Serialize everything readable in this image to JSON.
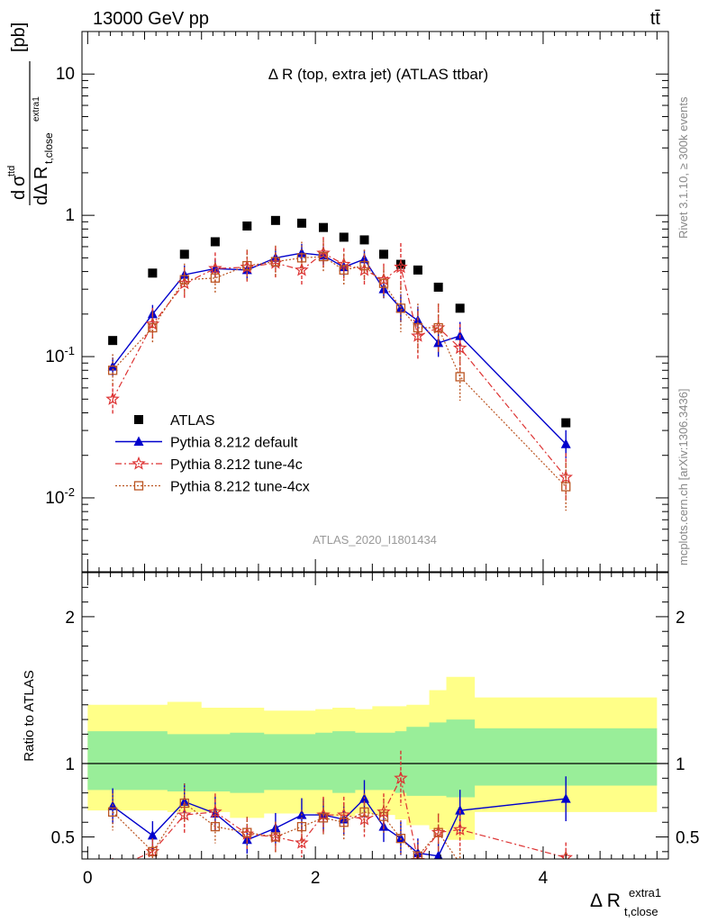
{
  "header": {
    "beam_label": "13000 GeV pp",
    "process_label": "tt̄"
  },
  "side_labels": {
    "rivet": "Rivet 3.1.10, ≥ 300k events",
    "mcplots": "mcplots.cern.ch [arXiv:1306.3436]"
  },
  "chart_data": [
    {
      "type": "scatter",
      "title": "Δ R (top, extra jet) (ATLAS ttbar)",
      "watermark": "ATLAS_2020_I1801434",
      "ylabel": "dσ^ttd / dΔ R_t,close^extra1 [pb]",
      "yscale": "log",
      "ylim": [
        0.003,
        20
      ],
      "xlim": [
        -0.05,
        5.1
      ],
      "y_tick_labels": [
        "10^-2",
        "10^-1",
        "1",
        "10"
      ],
      "legend_position": "lower-left",
      "x": [
        0.22,
        0.57,
        0.85,
        1.12,
        1.4,
        1.65,
        1.88,
        2.07,
        2.25,
        2.43,
        2.6,
        2.75,
        2.9,
        3.08,
        3.27,
        4.2
      ],
      "series": [
        {
          "name": "ATLAS",
          "color": "#000000",
          "marker": "square",
          "values": [
            0.13,
            0.39,
            0.53,
            0.65,
            0.84,
            0.92,
            0.88,
            0.82,
            0.7,
            0.67,
            0.53,
            0.45,
            0.41,
            0.31,
            0.22,
            0.034
          ]
        },
        {
          "name": "Pythia 8.212 default",
          "color": "#0000cc",
          "marker": "triangle",
          "line": "solid",
          "values": [
            0.085,
            0.2,
            0.38,
            0.42,
            0.41,
            0.5,
            0.54,
            0.52,
            0.43,
            0.49,
            0.3,
            0.22,
            0.18,
            0.125,
            0.14,
            0.024
          ]
        },
        {
          "name": "Pythia 8.212 tune-4c",
          "color": "#dd3333",
          "marker": "star",
          "line": "dashdot",
          "values": [
            0.05,
            0.17,
            0.33,
            0.42,
            0.43,
            0.46,
            0.41,
            0.54,
            0.45,
            0.41,
            0.35,
            0.43,
            0.14,
            0.16,
            0.115,
            0.014
          ]
        },
        {
          "name": "Pythia 8.212 tune-4cx",
          "color": "#bb5522",
          "marker": "open-square",
          "line": "dotted",
          "values": [
            0.08,
            0.16,
            0.35,
            0.36,
            0.44,
            0.47,
            0.5,
            0.51,
            0.41,
            0.44,
            0.33,
            0.22,
            0.16,
            0.16,
            0.072,
            0.012
          ]
        }
      ]
    },
    {
      "type": "scatter",
      "ylabel": "Ratio to ATLAS",
      "xlabel": "Δ R_t,close^extra1",
      "ylim": [
        0.35,
        2.3
      ],
      "xlim": [
        -0.05,
        5.1
      ],
      "x_tick_labels": [
        "0",
        "2",
        "4"
      ],
      "y_tick_labels": [
        "0.5",
        "1",
        "2"
      ],
      "bins": [
        0.0,
        0.35,
        0.7,
        1.0,
        1.25,
        1.55,
        1.75,
        2.0,
        2.15,
        2.35,
        2.5,
        2.7,
        2.8,
        3.0,
        3.15,
        3.4,
        5.0
      ],
      "band_inner_up": [
        1.22,
        1.22,
        1.2,
        1.2,
        1.21,
        1.2,
        1.2,
        1.21,
        1.22,
        1.21,
        1.21,
        1.22,
        1.25,
        1.28,
        1.3,
        1.24
      ],
      "band_inner_down": [
        0.82,
        0.82,
        0.81,
        0.81,
        0.8,
        0.82,
        0.82,
        0.82,
        0.8,
        0.82,
        0.82,
        0.8,
        0.78,
        0.78,
        0.77,
        0.85
      ],
      "band_outer_up": [
        1.4,
        1.4,
        1.42,
        1.38,
        1.38,
        1.36,
        1.36,
        1.37,
        1.38,
        1.37,
        1.39,
        1.39,
        1.4,
        1.5,
        1.59,
        1.45
      ],
      "band_outer_down": [
        0.68,
        0.68,
        0.67,
        0.67,
        0.63,
        0.66,
        0.66,
        0.65,
        0.64,
        0.66,
        0.65,
        0.62,
        0.58,
        0.55,
        0.48,
        0.67
      ],
      "series": [
        {
          "name": "Pythia 8.212 default",
          "values": [
            0.71,
            0.51,
            0.74,
            0.66,
            0.48,
            0.56,
            0.65,
            0.65,
            0.62,
            0.76,
            0.57,
            0.49,
            0.39,
            0.37,
            0.68,
            0.76
          ]
        },
        {
          "name": "Pythia 8.212 tune-4c",
          "values": [
            0.28,
            0.4,
            0.65,
            0.67,
            0.52,
            0.5,
            0.46,
            0.65,
            0.65,
            0.62,
            0.67,
            0.9,
            0.34,
            0.53,
            0.55,
            0.36
          ]
        },
        {
          "name": "Pythia 8.212 tune-4cx",
          "values": [
            0.67,
            0.4,
            0.73,
            0.57,
            0.53,
            0.5,
            0.57,
            0.63,
            0.6,
            0.67,
            0.64,
            0.49,
            0.37,
            0.53,
            0.32,
            0.3
          ]
        }
      ]
    }
  ]
}
